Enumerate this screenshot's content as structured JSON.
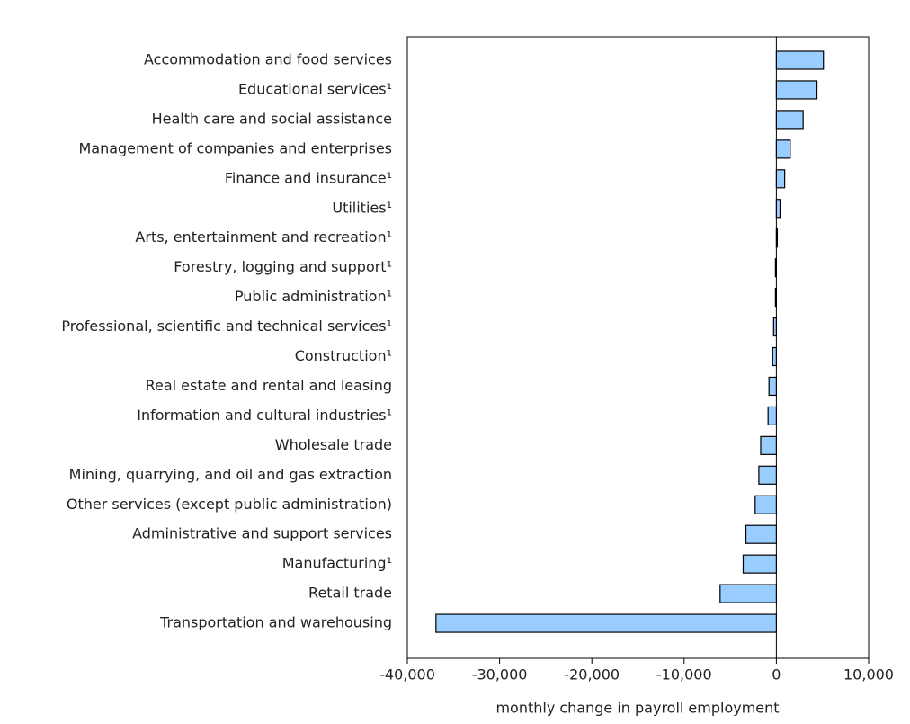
{
  "chart_data": {
    "type": "barh",
    "x_label": "monthly change in payroll employment",
    "categories": [
      "Accommodation and food services",
      "Educational services¹",
      "Health care and social assistance",
      "Management of companies and enterprises",
      "Finance and insurance¹",
      "Utilities¹",
      "Arts, entertainment and recreation¹",
      "Forestry, logging and support¹",
      "Public administration¹",
      "Professional, scientific and technical services¹",
      "Construction¹",
      "Real estate and rental and leasing",
      "Information and cultural industries¹",
      "Wholesale trade",
      "Mining, quarrying, and oil and gas extraction",
      "Other services (except public administration)",
      "Administrative and support services",
      "Manufacturing¹",
      "Retail trade",
      "Transportation and warehousing"
    ],
    "values": [
      5100,
      4400,
      2900,
      1500,
      900,
      400,
      100,
      -100,
      -100,
      -300,
      -400,
      -800,
      -900,
      -1700,
      -1900,
      -2300,
      -3300,
      -3600,
      -6100,
      -36900
    ],
    "color": "#99ccff",
    "xlim": [
      -40000,
      10000
    ],
    "xticks": [
      {
        "value": -40000,
        "label": "-40,000"
      },
      {
        "value": -30000,
        "label": "-30,000"
      },
      {
        "value": -20000,
        "label": "-20,000"
      },
      {
        "value": -10000,
        "label": "-10,000"
      },
      0,
      {
        "value": 10000,
        "label": "10,000"
      }
    ],
    "grid": false
  }
}
